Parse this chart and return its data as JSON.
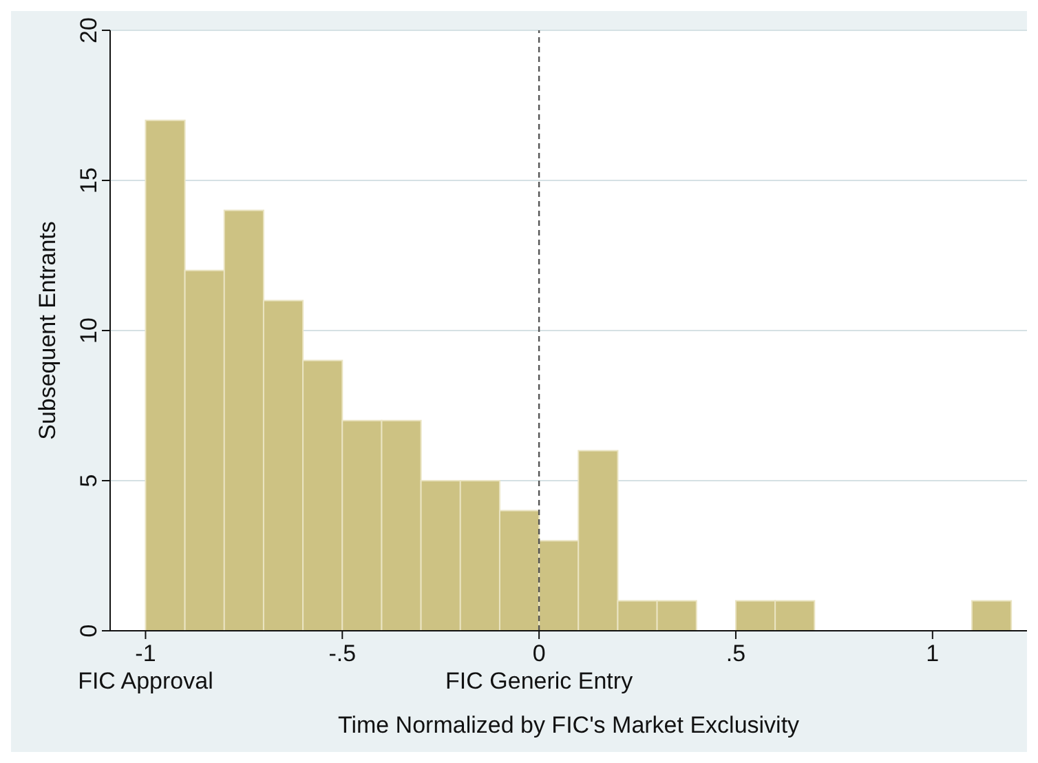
{
  "chart_data": {
    "type": "histogram",
    "xlabel": "Time Normalized by FIC's Market Exclusivity",
    "ylabel": "Subsequent Entrants",
    "bins": [
      -1,
      -0.9,
      -0.8,
      -0.7,
      -0.6,
      -0.5,
      -0.4,
      -0.3,
      -0.2,
      -0.1,
      0,
      0.1,
      0.2,
      0.3,
      0.4,
      0.5,
      0.6,
      0.7,
      0.8,
      0.9,
      1,
      1.1,
      1.2
    ],
    "values": [
      17,
      12,
      14,
      11,
      9,
      7,
      7,
      5,
      5,
      4,
      3,
      6,
      1,
      1,
      0,
      1,
      1,
      0,
      0,
      0,
      0,
      1
    ],
    "color": "#cdc283",
    "xlim": [
      -1.09,
      1.24
    ],
    "xticks": [
      {
        "value": -1,
        "label": "-1\nFIC Approval"
      },
      {
        "value": -0.5,
        "label": "-.5"
      },
      {
        "value": 0,
        "label": "0\nFIC Generic Entry"
      },
      {
        "value": 0.5,
        "label": ".5"
      },
      1
    ],
    "ylim": [
      0,
      20
    ],
    "yticks": [
      0,
      5,
      10,
      15,
      20
    ],
    "grid": "y",
    "ref_lines": [
      {
        "axis": "x",
        "value": 0,
        "line_style": "dashed",
        "color": "#555555"
      }
    ]
  }
}
